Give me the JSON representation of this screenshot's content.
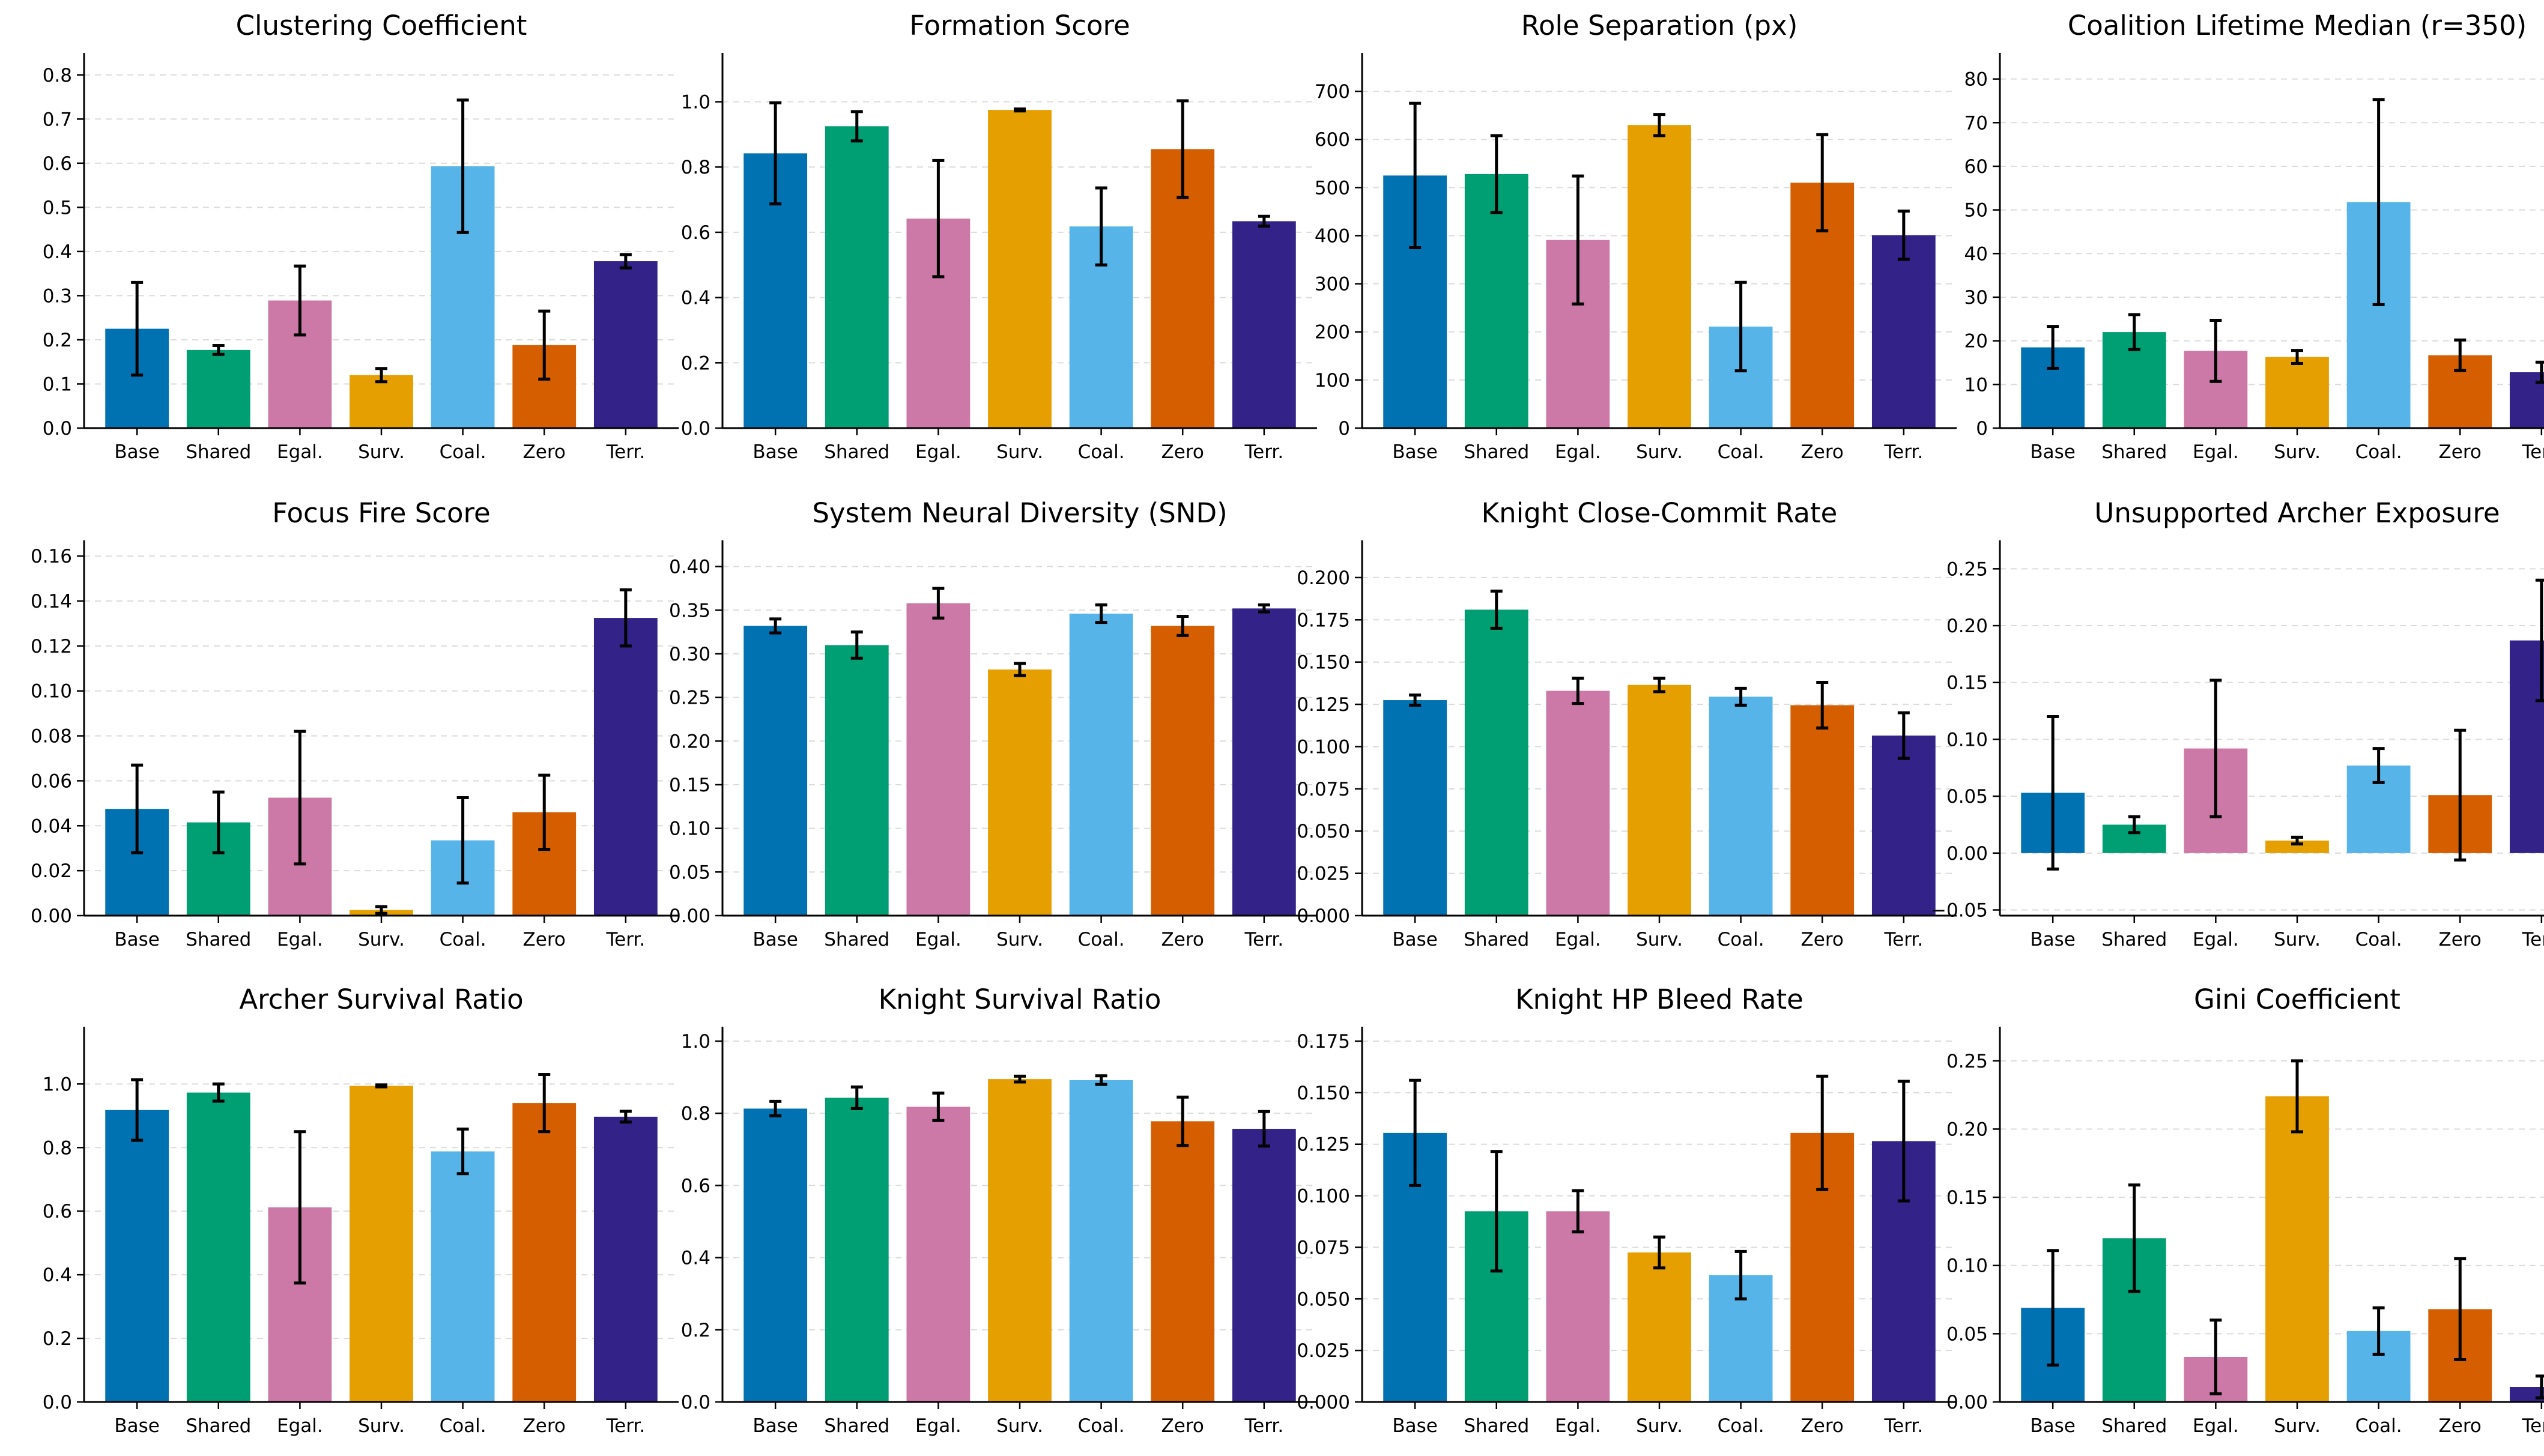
{
  "colors": [
    "#0072B2",
    "#009E73",
    "#CC79A7",
    "#E69F00",
    "#56B4E9",
    "#D55E00",
    "#332288"
  ],
  "chart_data": [
    {
      "type": "bar",
      "title": "Clustering Coefficient",
      "categories": [
        "Base",
        "Shared",
        "Egal.",
        "Surv.",
        "Coal.",
        "Zero",
        "Terr."
      ],
      "values": [
        0.225,
        0.177,
        0.289,
        0.12,
        0.593,
        0.188,
        0.378
      ],
      "errors": [
        0.105,
        0.01,
        0.078,
        0.015,
        0.15,
        0.077,
        0.015
      ],
      "ylim": [
        0,
        0.85
      ],
      "yticks": [
        "0.0",
        "0.1",
        "0.2",
        "0.3",
        "0.4",
        "0.5",
        "0.6",
        "0.7",
        "0.8"
      ],
      "grid": true
    },
    {
      "type": "bar",
      "title": "Formation Score",
      "categories": [
        "Base",
        "Shared",
        "Egal.",
        "Surv.",
        "Coal.",
        "Zero",
        "Terr."
      ],
      "values": [
        0.842,
        0.925,
        0.642,
        0.975,
        0.618,
        0.855,
        0.634
      ],
      "errors": [
        0.155,
        0.045,
        0.178,
        0.003,
        0.118,
        0.148,
        0.015
      ],
      "ylim": [
        0,
        1.15
      ],
      "yticks": [
        "0.0",
        "0.2",
        "0.4",
        "0.6",
        "0.8",
        "1.0"
      ],
      "grid": true
    },
    {
      "type": "bar",
      "title": "Role Separation (px)",
      "categories": [
        "Base",
        "Shared",
        "Egal.",
        "Surv.",
        "Coal.",
        "Zero",
        "Terr."
      ],
      "values": [
        525,
        528,
        391,
        630,
        211,
        510,
        401
      ],
      "errors": [
        150,
        80,
        133,
        22,
        92,
        100,
        50
      ],
      "ylim": [
        0,
        780
      ],
      "yticks": [
        "0",
        "100",
        "200",
        "300",
        "400",
        "500",
        "600",
        "700"
      ],
      "grid": true
    },
    {
      "type": "bar",
      "title": "Coalition Lifetime Median (r=350)",
      "categories": [
        "Base",
        "Shared",
        "Egal.",
        "Surv.",
        "Coal.",
        "Zero",
        "Terr."
      ],
      "values": [
        18.5,
        22.0,
        17.7,
        16.3,
        51.8,
        16.7,
        12.8
      ],
      "errors": [
        4.8,
        4.0,
        7.0,
        1.5,
        23.5,
        3.5,
        2.3
      ],
      "ylim": [
        0,
        86
      ],
      "yticks": [
        "0",
        "10",
        "20",
        "30",
        "40",
        "50",
        "60",
        "70",
        "80"
      ],
      "grid": true
    },
    {
      "type": "bar",
      "title": "Focus Fire Score",
      "categories": [
        "Base",
        "Shared",
        "Egal.",
        "Surv.",
        "Coal.",
        "Zero",
        "Terr."
      ],
      "values": [
        0.0475,
        0.0415,
        0.0525,
        0.0025,
        0.0335,
        0.046,
        0.1325
      ],
      "errors": [
        0.0195,
        0.0135,
        0.0295,
        0.0015,
        0.019,
        0.0165,
        0.0125
      ],
      "ylim": [
        0,
        0.167
      ],
      "yticks": [
        "0.00",
        "0.02",
        "0.04",
        "0.06",
        "0.08",
        "0.10",
        "0.12",
        "0.14",
        "0.16"
      ],
      "grid": true
    },
    {
      "type": "bar",
      "title": "System Neural Diversity (SND)",
      "categories": [
        "Base",
        "Shared",
        "Egal.",
        "Surv.",
        "Coal.",
        "Zero",
        "Terr."
      ],
      "values": [
        0.332,
        0.31,
        0.358,
        0.282,
        0.346,
        0.332,
        0.352
      ],
      "errors": [
        0.008,
        0.015,
        0.017,
        0.007,
        0.01,
        0.011,
        0.004
      ],
      "ylim": [
        0,
        0.43
      ],
      "yticks": [
        "0.00",
        "0.05",
        "0.10",
        "0.15",
        "0.20",
        "0.25",
        "0.30",
        "0.35",
        "0.40"
      ],
      "grid": true
    },
    {
      "type": "bar",
      "title": "Knight Close-Commit Rate",
      "categories": [
        "Base",
        "Shared",
        "Egal.",
        "Surv.",
        "Coal.",
        "Zero",
        "Terr."
      ],
      "values": [
        0.1275,
        0.181,
        0.133,
        0.1365,
        0.1295,
        0.1245,
        0.1065
      ],
      "errors": [
        0.003,
        0.011,
        0.0075,
        0.004,
        0.005,
        0.0135,
        0.0135
      ],
      "ylim": [
        0,
        0.222
      ],
      "yticks": [
        "0.000",
        "0.025",
        "0.050",
        "0.075",
        "0.100",
        "0.125",
        "0.150",
        "0.175",
        "0.200"
      ],
      "grid": true
    },
    {
      "type": "bar",
      "title": "Unsupported Archer Exposure",
      "categories": [
        "Base",
        "Shared",
        "Egal.",
        "Surv.",
        "Coal.",
        "Zero",
        "Terr."
      ],
      "values": [
        0.053,
        0.025,
        0.092,
        0.011,
        0.077,
        0.051,
        0.187
      ],
      "errors": [
        0.067,
        0.007,
        0.06,
        0.003,
        0.015,
        0.057,
        0.053
      ],
      "ylim": [
        -0.055,
        0.275
      ],
      "yticks": [
        "−0.05",
        "0.00",
        "0.05",
        "0.10",
        "0.15",
        "0.20",
        "0.25"
      ],
      "grid": true
    },
    {
      "type": "bar",
      "title": "Archer Survival Ratio",
      "categories": [
        "Base",
        "Shared",
        "Egal.",
        "Surv.",
        "Coal.",
        "Zero",
        "Terr."
      ],
      "values": [
        0.918,
        0.973,
        0.612,
        0.994,
        0.788,
        0.94,
        0.897
      ],
      "errors": [
        0.095,
        0.027,
        0.238,
        0.003,
        0.07,
        0.09,
        0.017
      ],
      "ylim": [
        0,
        1.18
      ],
      "yticks": [
        "0.0",
        "0.2",
        "0.4",
        "0.6",
        "0.8",
        "1.0"
      ],
      "grid": true
    },
    {
      "type": "bar",
      "title": "Knight Survival Ratio",
      "categories": [
        "Base",
        "Shared",
        "Egal.",
        "Surv.",
        "Coal.",
        "Zero",
        "Terr."
      ],
      "values": [
        0.813,
        0.843,
        0.818,
        0.895,
        0.892,
        0.778,
        0.757
      ],
      "errors": [
        0.02,
        0.03,
        0.038,
        0.008,
        0.012,
        0.067,
        0.048
      ],
      "ylim": [
        0,
        1.04
      ],
      "yticks": [
        "0.0",
        "0.2",
        "0.4",
        "0.6",
        "0.8",
        "1.0"
      ],
      "grid": true
    },
    {
      "type": "bar",
      "title": "Knight HP Bleed Rate",
      "categories": [
        "Base",
        "Shared",
        "Egal.",
        "Surv.",
        "Coal.",
        "Zero",
        "Terr."
      ],
      "values": [
        0.1305,
        0.0925,
        0.0925,
        0.0725,
        0.0615,
        0.1305,
        0.1265
      ],
      "errors": [
        0.0255,
        0.029,
        0.01,
        0.0075,
        0.0115,
        0.0275,
        0.029
      ],
      "ylim": [
        0,
        0.182
      ],
      "yticks": [
        "0.000",
        "0.025",
        "0.050",
        "0.075",
        "0.100",
        "0.125",
        "0.150",
        "0.175"
      ],
      "grid": true
    },
    {
      "type": "bar",
      "title": "Gini Coefficient",
      "categories": [
        "Base",
        "Shared",
        "Egal.",
        "Surv.",
        "Coal.",
        "Zero",
        "Terr."
      ],
      "values": [
        0.069,
        0.12,
        0.033,
        0.224,
        0.052,
        0.068,
        0.011
      ],
      "errors": [
        0.042,
        0.039,
        0.027,
        0.026,
        0.017,
        0.037,
        0.008
      ],
      "ylim": [
        0,
        0.275
      ],
      "yticks": [
        "0.00",
        "0.05",
        "0.10",
        "0.15",
        "0.20",
        "0.25"
      ],
      "grid": true
    }
  ]
}
